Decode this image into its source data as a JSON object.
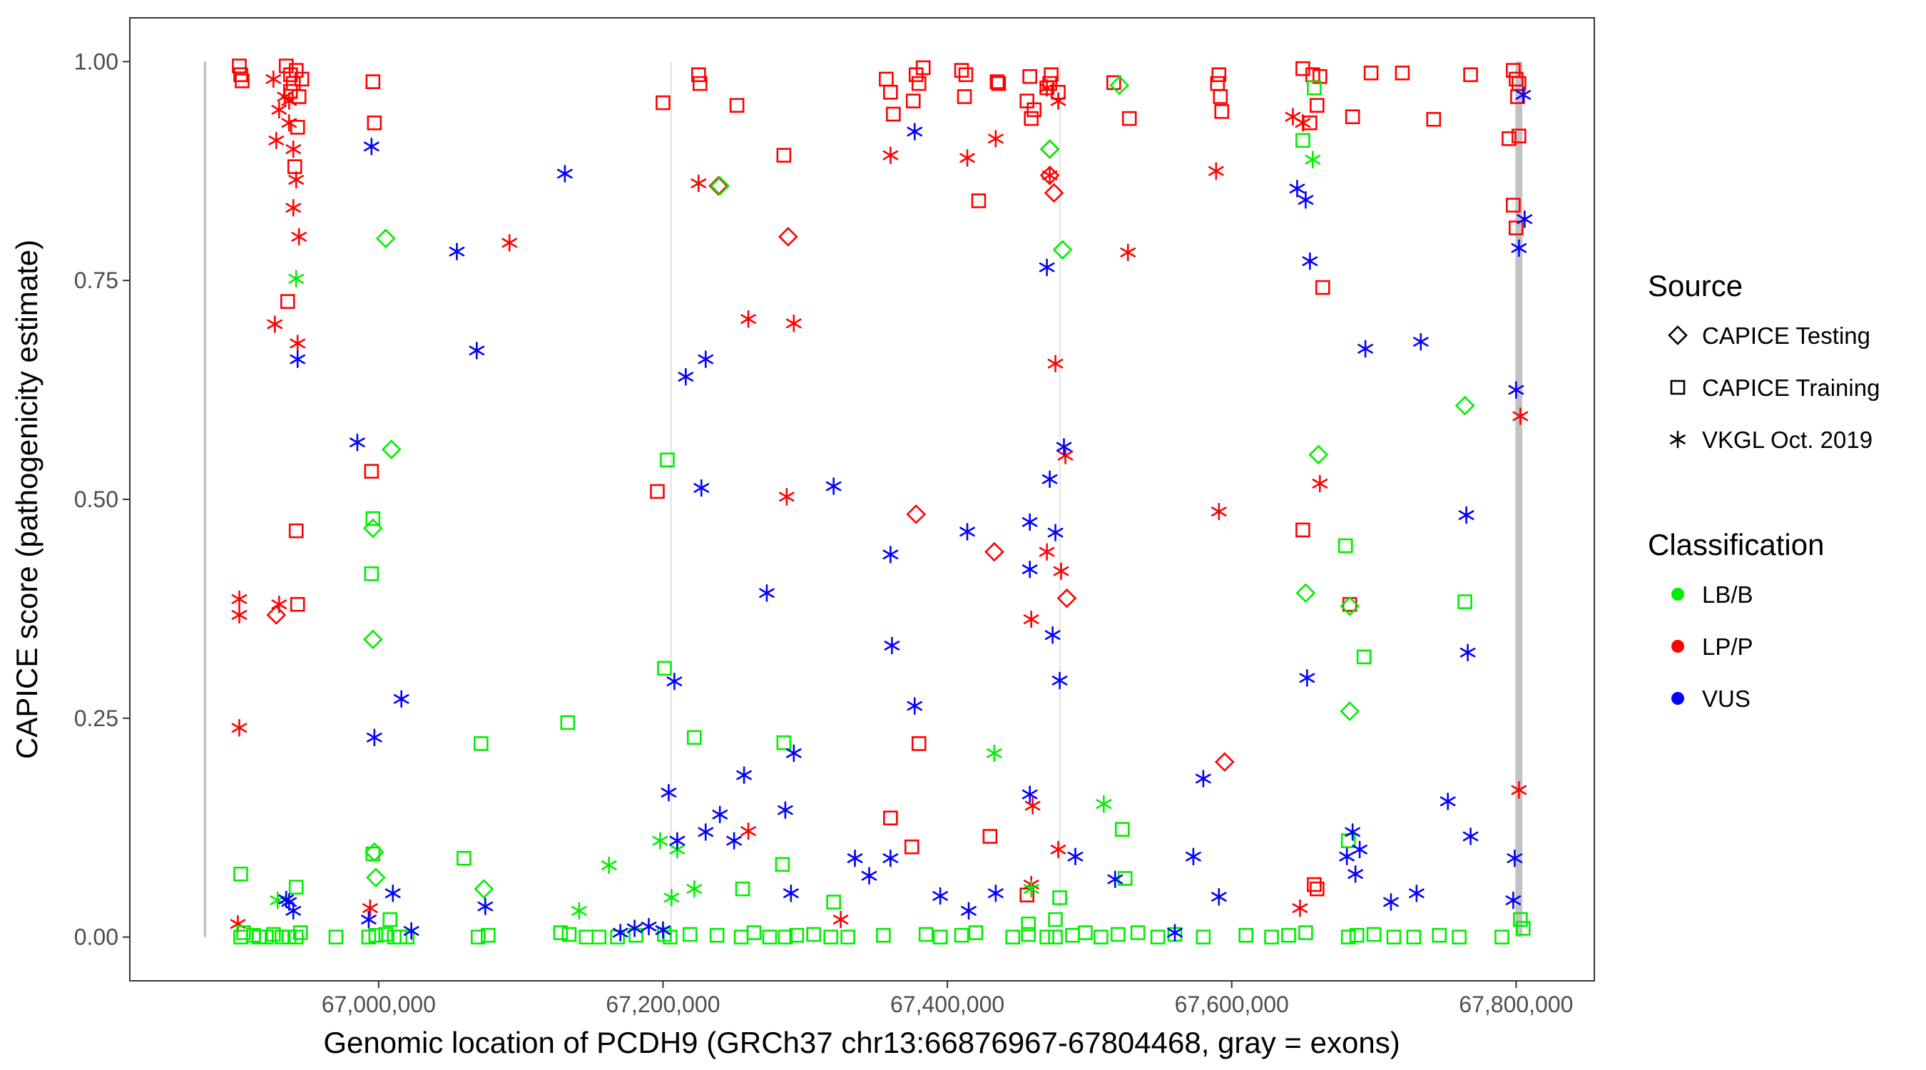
{
  "chart_data": {
    "type": "scatter",
    "xlabel": "Genomic location of PCDH9 (GRCh37 chr13:66876967-67804468, gray = exons)",
    "ylabel": "CAPICE score (pathogenicity estimate)",
    "xlim": [
      66825000,
      67855000
    ],
    "ylim": [
      -0.05,
      1.05
    ],
    "x_ticks": [
      67000000,
      67200000,
      67400000,
      67600000,
      67800000
    ],
    "x_tick_labels": [
      "67,000,000",
      "67,200,000",
      "67,400,000",
      "67,600,000",
      "67,800,000"
    ],
    "y_ticks": [
      0,
      0.25,
      0.5,
      0.75,
      1.0
    ],
    "y_tick_labels": [
      "0.00",
      "0.25",
      "0.50",
      "0.75",
      "1.00"
    ],
    "exons": [
      {
        "start": 66877000,
        "end": 66878800
      },
      {
        "start": 67205000,
        "end": 67205600
      },
      {
        "start": 67478500,
        "end": 67479000
      },
      {
        "start": 67799500,
        "end": 67804400
      }
    ],
    "exon_range": [
      0,
      1.0
    ],
    "legend": {
      "source": {
        "title": "Source",
        "items": [
          {
            "key": "testing",
            "label": "CAPICE Testing"
          },
          {
            "key": "training",
            "label": "CAPICE Training"
          },
          {
            "key": "vkgl",
            "label": "VKGL Oct. 2019"
          }
        ]
      },
      "classification": {
        "title": "Classification",
        "items": [
          {
            "key": "LB/B",
            "label": "LB/B",
            "color": "#00ee00"
          },
          {
            "key": "LP/P",
            "label": "LP/P",
            "color": "#ff0000"
          },
          {
            "key": "VUS",
            "label": "VUS",
            "color": "#0000ff"
          }
        ]
      }
    },
    "series": [
      {
        "name": "LP/P",
        "source": "training",
        "x": [
          66902000,
          66903000,
          66904000,
          66935000,
          66938000,
          66940000,
          66942000,
          66944000,
          66946000,
          66938000,
          66943000,
          66996000,
          66997000,
          66995000,
          66936000,
          66942000,
          66943000,
          66941000,
          67200000,
          67225000,
          67226000,
          67252000,
          67285000,
          67357000,
          67360000,
          67362000,
          67380000,
          67378000,
          67376000,
          67383000,
          67410000,
          67412000,
          67413000,
          67422000,
          67436000,
          67435000,
          67456000,
          67458000,
          67459000,
          67461000,
          67470000,
          67472000,
          67473000,
          67478000,
          67517000,
          67528000,
          67590000,
          67591000,
          67592000,
          67593000,
          67650000,
          67655000,
          67657000,
          67660000,
          67662000,
          67664000,
          67685000,
          67698000,
          67720000,
          67742000,
          67768000,
          67795000,
          67798000,
          67800000,
          67801000,
          67802000,
          67798000,
          67800000,
          67802000,
          67360000,
          67375000,
          67380000,
          67430000,
          67456000,
          67196000,
          67650000,
          67658000,
          67660000,
          67683000
        ],
        "y": [
          0.995,
          0.985,
          0.978,
          0.995,
          0.985,
          0.975,
          0.99,
          0.96,
          0.98,
          0.966,
          0.925,
          0.977,
          0.93,
          0.532,
          0.726,
          0.464,
          0.38,
          0.88,
          0.953,
          0.985,
          0.975,
          0.95,
          0.893,
          0.98,
          0.965,
          0.94,
          0.975,
          0.985,
          0.955,
          0.993,
          0.99,
          0.96,
          0.985,
          0.841,
          0.975,
          0.977,
          0.955,
          0.983,
          0.935,
          0.945,
          0.97,
          0.975,
          0.985,
          0.965,
          0.976,
          0.935,
          0.975,
          0.985,
          0.96,
          0.943,
          0.992,
          0.93,
          0.985,
          0.95,
          0.983,
          0.742,
          0.937,
          0.987,
          0.987,
          0.934,
          0.985,
          0.912,
          0.99,
          0.98,
          0.96,
          0.975,
          0.836,
          0.81,
          0.915,
          0.136,
          0.103,
          0.221,
          0.115,
          0.048,
          0.509,
          0.465,
          0.06,
          0.055,
          0.38
        ]
      },
      {
        "name": "LP/P",
        "source": "testing",
        "x": [
          66928000,
          67239000,
          67288000,
          67378000,
          67433000,
          67472000,
          67472000,
          67475000,
          67484000,
          67595000
        ],
        "y": [
          0.368,
          0.858,
          0.8,
          0.483,
          0.44,
          0.9,
          0.87,
          0.85,
          0.387,
          0.2
        ]
      },
      {
        "name": "LP/P",
        "source": "vkgl",
        "x": [
          66902000,
          66902000,
          66902000,
          66901000,
          66926000,
          66930000,
          66934000,
          66937000,
          66940000,
          66942000,
          66944000,
          66940000,
          66943000,
          66928000,
          66927000,
          66930000,
          66937000,
          66994000,
          67092000,
          67225000,
          67260000,
          67292000,
          67287000,
          67360000,
          67414000,
          67434000,
          67470000,
          67472000,
          67476000,
          67478000,
          67480000,
          67483000,
          67527000,
          67589000,
          67591000,
          67643000,
          67650000,
          67662000,
          67803000,
          67802000,
          67260000,
          67325000,
          67459000,
          67460000,
          67478000,
          67648000,
          67459000,
          67470000
        ],
        "y": [
          0.386,
          0.368,
          0.239,
          0.015,
          0.98,
          0.945,
          0.96,
          0.93,
          0.9,
          0.865,
          0.8,
          0.833,
          0.678,
          0.91,
          0.7,
          0.38,
          0.955,
          0.033,
          0.793,
          0.861,
          0.706,
          0.701,
          0.503,
          0.893,
          0.89,
          0.912,
          0.97,
          0.87,
          0.655,
          0.955,
          0.418,
          0.55,
          0.782,
          0.875,
          0.486,
          0.937,
          0.93,
          0.518,
          0.595,
          0.168,
          0.121,
          0.02,
          0.363,
          0.15,
          0.1,
          0.033,
          0.06,
          0.44
        ]
      },
      {
        "name": "LB/B",
        "source": "training",
        "x": [
          66903000,
          66905000,
          66912000,
          66916000,
          66921000,
          66926000,
          66932000,
          66937000,
          66942000,
          66945000,
          66970000,
          66993000,
          66998000,
          67005000,
          67011000,
          67015000,
          67020000,
          67070000,
          67077000,
          67128000,
          67134000,
          67146000,
          67155000,
          67168000,
          67181000,
          67201000,
          67205000,
          67219000,
          67238000,
          67255000,
          67264000,
          67275000,
          67286000,
          67294000,
          67306000,
          67318000,
          67330000,
          67355000,
          67385000,
          67395000,
          67410000,
          67420000,
          67446000,
          67457000,
          67470000,
          67476000,
          67488000,
          67497000,
          67508000,
          67520000,
          67534000,
          67548000,
          67560000,
          67580000,
          67610000,
          67628000,
          67640000,
          67652000,
          67682000,
          67688000,
          67700000,
          67714000,
          67728000,
          67746000,
          67760000,
          67790000,
          67805000,
          66996000,
          66995000,
          67008000,
          66903000,
          66942000,
          66996000,
          67060000,
          67072000,
          67133000,
          67203000,
          67201000,
          67222000,
          67256000,
          67285000,
          67284000,
          67523000,
          67525000,
          67479000,
          67476000,
          67457000,
          67320000,
          67650000,
          67658000,
          67680000,
          67693000,
          67764000,
          67803000,
          67682000
        ],
        "y": [
          0.0,
          0.005,
          0.002,
          0.0,
          0.0,
          0.003,
          0.0,
          0.0,
          0.0,
          0.005,
          0.0,
          0.0,
          0.002,
          0.003,
          0.0,
          0.0,
          0.0,
          0.0,
          0.002,
          0.005,
          0.003,
          0.0,
          0.0,
          0.0,
          0.002,
          0.003,
          0.0,
          0.003,
          0.002,
          0.0,
          0.005,
          0.0,
          0.0,
          0.002,
          0.003,
          0.0,
          0.0,
          0.002,
          0.003,
          0.0,
          0.002,
          0.005,
          0.0,
          0.003,
          0.0,
          0.0,
          0.002,
          0.005,
          0.0,
          0.003,
          0.005,
          0.0,
          0.003,
          0.0,
          0.002,
          0.0,
          0.002,
          0.005,
          0.0,
          0.002,
          0.003,
          0.0,
          0.0,
          0.002,
          0.0,
          0.0,
          0.01,
          0.478,
          0.415,
          0.02,
          0.072,
          0.057,
          0.095,
          0.09,
          0.221,
          0.245,
          0.545,
          0.307,
          0.228,
          0.055,
          0.222,
          0.083,
          0.123,
          0.067,
          0.045,
          0.02,
          0.015,
          0.04,
          0.91,
          0.97,
          0.447,
          0.32,
          0.383,
          0.02,
          0.11
        ]
      },
      {
        "name": "LB/B",
        "source": "testing",
        "x": [
          67005000,
          67009000,
          66996000,
          66996000,
          66997000,
          66998000,
          67074000,
          67240000,
          67481000,
          67521000,
          67652000,
          67661000,
          67683000,
          67683000,
          67764000,
          67472000
        ],
        "y": [
          0.798,
          0.557,
          0.467,
          0.34,
          0.097,
          0.068,
          0.055,
          0.858,
          0.785,
          0.973,
          0.393,
          0.551,
          0.378,
          0.258,
          0.607,
          0.9
        ]
      },
      {
        "name": "LB/B",
        "source": "vkgl",
        "x": [
          66942000,
          66929000,
          67141000,
          67162000,
          67198000,
          67222000,
          67206000,
          67433000,
          67459000,
          67510000,
          67657000,
          67210000
        ],
        "y": [
          0.752,
          0.042,
          0.03,
          0.082,
          0.11,
          0.055,
          0.045,
          0.21,
          0.055,
          0.152,
          0.888,
          0.1
        ]
      },
      {
        "name": "VUS",
        "source": "vkgl",
        "x": [
          66995000,
          66943000,
          66937000,
          67131000,
          67055000,
          66985000,
          67016000,
          66997000,
          67069000,
          67208000,
          67230000,
          67216000,
          67227000,
          67273000,
          67286000,
          67292000,
          67320000,
          67377000,
          67360000,
          67361000,
          67377000,
          67414000,
          67458000,
          67458000,
          67470000,
          67472000,
          67476000,
          67482000,
          67479000,
          67474000,
          67580000,
          67573000,
          67591000,
          67646000,
          67652000,
          67655000,
          67653000,
          67694000,
          67733000,
          67752000,
          67765000,
          67766000,
          67768000,
          67799000,
          67800000,
          67802000,
          67806000,
          67805000,
          67798000,
          67335000,
          67345000,
          67360000,
          67395000,
          67415000,
          67434000,
          67458000,
          67490000,
          67230000,
          67240000,
          67250000,
          67257000,
          67290000,
          67204000,
          67210000,
          67685000,
          67690000,
          67730000,
          67712000,
          66935000,
          66940000,
          67010000,
          67075000,
          67518000,
          67681000,
          67687000,
          66993000,
          67023000,
          67170000,
          67180000,
          67190000,
          67200000,
          67560000
        ],
        "y": [
          0.903,
          0.66,
          0.04,
          0.872,
          0.783,
          0.565,
          0.272,
          0.228,
          0.67,
          0.292,
          0.66,
          0.64,
          0.513,
          0.393,
          0.145,
          0.21,
          0.515,
          0.264,
          0.437,
          0.333,
          0.92,
          0.463,
          0.474,
          0.42,
          0.765,
          0.523,
          0.462,
          0.56,
          0.293,
          0.345,
          0.181,
          0.092,
          0.046,
          0.855,
          0.842,
          0.772,
          0.296,
          0.672,
          0.68,
          0.155,
          0.482,
          0.325,
          0.115,
          0.09,
          0.625,
          0.787,
          0.82,
          0.962,
          0.042,
          0.09,
          0.07,
          0.09,
          0.047,
          0.03,
          0.05,
          0.163,
          0.092,
          0.12,
          0.14,
          0.11,
          0.185,
          0.05,
          0.165,
          0.11,
          0.12,
          0.1,
          0.05,
          0.04,
          0.043,
          0.03,
          0.05,
          0.035,
          0.066,
          0.092,
          0.072,
          0.02,
          0.007,
          0.005,
          0.01,
          0.012,
          0.008,
          0.005
        ]
      }
    ]
  }
}
